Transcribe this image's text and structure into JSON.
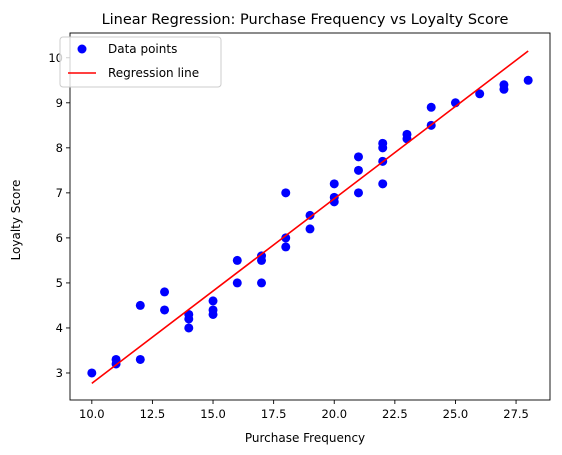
{
  "chart_data": {
    "type": "scatter",
    "title": "Linear Regression: Purchase Frequency vs Loyalty Score",
    "xlabel": "Purchase Frequency",
    "ylabel": "Loyalty Score",
    "xlim": [
      9.1,
      28.9
    ],
    "ylim": [
      2.4,
      10.55
    ],
    "xticks": [
      10.0,
      12.5,
      15.0,
      17.5,
      20.0,
      22.5,
      25.0,
      27.5
    ],
    "xtick_labels": [
      "10.0",
      "12.5",
      "15.0",
      "17.5",
      "20.0",
      "22.5",
      "25.0",
      "27.5"
    ],
    "yticks": [
      3,
      4,
      5,
      6,
      7,
      8,
      9,
      10
    ],
    "ytick_labels": [
      "3",
      "4",
      "5",
      "6",
      "7",
      "8",
      "9",
      "10"
    ],
    "grid": false,
    "legend_position": "top-left",
    "series": [
      {
        "name": "Data points",
        "kind": "scatter",
        "color": "#0000ff",
        "points": [
          [
            10,
            3.0
          ],
          [
            11,
            3.2
          ],
          [
            11,
            3.3
          ],
          [
            12,
            3.3
          ],
          [
            12,
            4.5
          ],
          [
            13,
            4.4
          ],
          [
            13,
            4.8
          ],
          [
            14,
            4.0
          ],
          [
            14,
            4.2
          ],
          [
            14,
            4.3
          ],
          [
            15,
            4.3
          ],
          [
            15,
            4.4
          ],
          [
            15,
            4.6
          ],
          [
            16,
            5.0
          ],
          [
            16,
            5.5
          ],
          [
            17,
            5.0
          ],
          [
            17,
            5.5
          ],
          [
            17,
            5.6
          ],
          [
            18,
            5.8
          ],
          [
            18,
            6.0
          ],
          [
            18,
            7.0
          ],
          [
            19,
            6.2
          ],
          [
            19,
            6.5
          ],
          [
            20,
            6.8
          ],
          [
            20,
            6.9
          ],
          [
            20,
            7.2
          ],
          [
            21,
            7.0
          ],
          [
            21,
            7.5
          ],
          [
            21,
            7.8
          ],
          [
            22,
            7.2
          ],
          [
            22,
            7.7
          ],
          [
            22,
            8.0
          ],
          [
            22,
            8.1
          ],
          [
            23,
            8.2
          ],
          [
            23,
            8.3
          ],
          [
            24,
            8.5
          ],
          [
            24,
            8.9
          ],
          [
            25,
            9.0
          ],
          [
            26,
            9.2
          ],
          [
            27,
            9.3
          ],
          [
            27,
            9.4
          ],
          [
            28,
            9.5
          ]
        ]
      },
      {
        "name": "Regression line",
        "kind": "line",
        "color": "#ff0000",
        "points": [
          [
            10,
            2.77
          ],
          [
            28,
            10.15
          ]
        ]
      }
    ]
  }
}
